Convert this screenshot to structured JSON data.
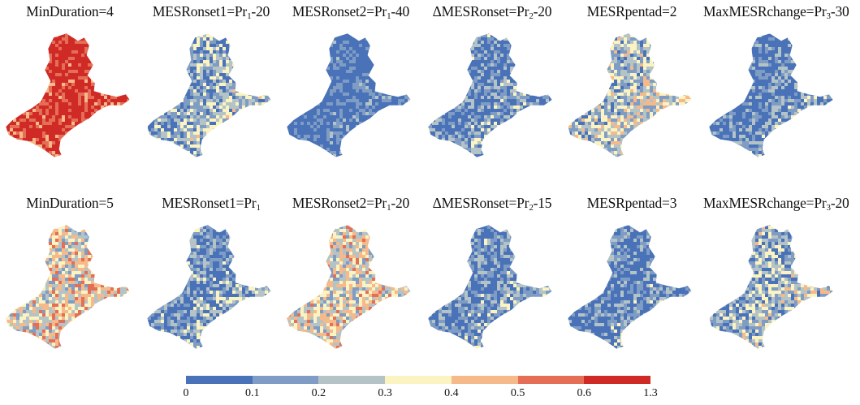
{
  "panels": [
    {
      "title": "MinDuration=4",
      "level": 0.88
    },
    {
      "title": "MESRonset1=Pr<sub>1</sub>-20",
      "level": 0.3
    },
    {
      "title": "MESRonset2=Pr<sub>1</sub>-40",
      "level": 0.05
    },
    {
      "title": "ΔMESRonset=Pr<sub>2</sub>-20",
      "level": 0.18
    },
    {
      "title": "MESRpentad=2",
      "level": 0.38
    },
    {
      "title": "MaxMESRchange=Pr<sub>3</sub>-30",
      "level": 0.15
    },
    {
      "title": "MinDuration=5",
      "level": 0.52
    },
    {
      "title": "MESRonset1=Pr<sub>1</sub>",
      "level": 0.22
    },
    {
      "title": "MESRonset2=Pr<sub>1</sub>-20",
      "level": 0.5
    },
    {
      "title": "ΔMESRonset=Pr<sub>2</sub>-15",
      "level": 0.2
    },
    {
      "title": "MESRpentad=3",
      "level": 0.16
    },
    {
      "title": "MaxMESRchange=Pr<sub>3</sub>-20",
      "level": 0.33
    }
  ],
  "legend": {
    "colors": [
      "#4a72b8",
      "#7e9cc4",
      "#b4c3c5",
      "#fbf3c1",
      "#f5b98a",
      "#e56f56",
      "#cf2a26"
    ],
    "ticks": [
      "0",
      "0.1",
      "0.2",
      "0.3",
      "0.4",
      "0.5",
      "0.6",
      "1.3"
    ]
  }
}
